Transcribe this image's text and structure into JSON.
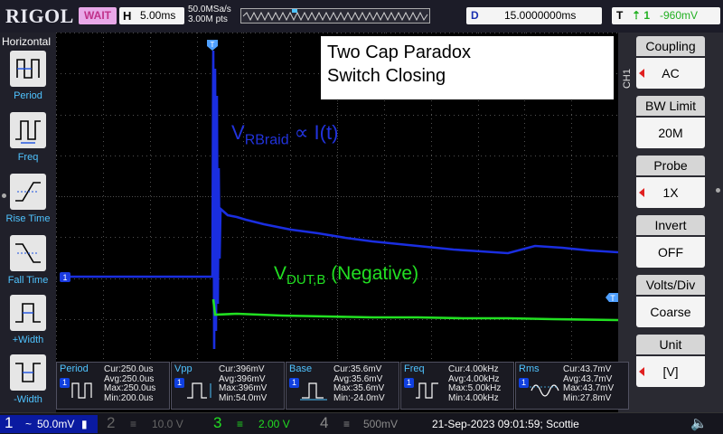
{
  "topbar": {
    "logo": "RIGOL",
    "run_status": "WAIT",
    "timebase_label": "H",
    "timebase_value": "5.00ms",
    "sample_rate": "50.0MSa/s",
    "memory_depth": "3.00M pts",
    "delay_label": "D",
    "delay_value": "15.0000000ms",
    "trigger_label": "T",
    "trigger_coupling": "⇡ 1",
    "trigger_level": "-960mV"
  },
  "left_panel": {
    "title": "Horizontal",
    "items": [
      {
        "label": "Period",
        "icon": "period-icon"
      },
      {
        "label": "Freq",
        "icon": "freq-icon"
      },
      {
        "label": "Rise Time",
        "icon": "rise-time-icon"
      },
      {
        "label": "Fall Time",
        "icon": "fall-time-icon"
      },
      {
        "label": "+Width",
        "icon": "positive-width-icon"
      },
      {
        "label": "-Width",
        "icon": "negative-width-icon"
      }
    ]
  },
  "annotation": {
    "line1": "Two Cap Paradox",
    "line2": "Switch Closing"
  },
  "trace_labels": {
    "blue_main": "V",
    "blue_sub": "RBraid",
    "blue_rest": " ∝ I(t)",
    "green_main": "V",
    "green_sub": "DUT,B",
    "green_rest": "  (Negative)"
  },
  "markers": {
    "ch1_marker": "1",
    "trigger_marker": "T"
  },
  "right_panel": {
    "channel_tag": "CH1",
    "menus": [
      {
        "title": "Coupling",
        "value": "AC",
        "has_arrow": true
      },
      {
        "title": "BW Limit",
        "value": "20M",
        "has_arrow": false
      },
      {
        "title": "Probe",
        "value": "1X",
        "has_arrow": true
      },
      {
        "title": "Invert",
        "value": "OFF",
        "has_arrow": false
      },
      {
        "title": "Volts/Div",
        "value": "Coarse",
        "has_arrow": false
      },
      {
        "title": "Unit",
        "value": "[V]",
        "has_arrow": true
      }
    ]
  },
  "measurements": [
    {
      "name": "Period",
      "channel": "1",
      "cur": "Cur:250.0us",
      "avg": "Avg:250.0us",
      "max": "Max:250.0us",
      "min": "Min:200.0us"
    },
    {
      "name": "Vpp",
      "channel": "1",
      "cur": "Cur:396mV",
      "avg": "Avg:396mV",
      "max": "Max:396mV",
      "min": "Min:54.0mV"
    },
    {
      "name": "Base",
      "channel": "1",
      "cur": "Cur:35.6mV",
      "avg": "Avg:35.6mV",
      "max": "Max:35.6mV",
      "min": "Min:-24.0mV"
    },
    {
      "name": "Freq",
      "channel": "1",
      "cur": "Cur:4.00kHz",
      "avg": "Avg:4.00kHz",
      "max": "Max:5.00kHz",
      "min": "Min:4.00kHz"
    },
    {
      "name": "Rms",
      "channel": "1",
      "cur": "Cur:43.7mV",
      "avg": "Avg:43.7mV",
      "max": "Max:43.7mV",
      "min": "Min:27.8mV"
    }
  ],
  "bottombar": {
    "channels": [
      {
        "num": "1",
        "coupling": "~",
        "scale": "50.0mV",
        "extra": "▮"
      },
      {
        "num": "2",
        "coupling": "≡",
        "scale": "10.0 V",
        "extra": ""
      },
      {
        "num": "3",
        "coupling": "≡",
        "scale": "2.00 V",
        "extra": ""
      },
      {
        "num": "4",
        "coupling": "≡",
        "scale": "500mV",
        "extra": ""
      }
    ],
    "datetime": "21-Sep-2023 09:01:59; Scottie",
    "speaker_icon": "🔈"
  },
  "colors": {
    "ch1": "#1a2ee0",
    "ch3": "#22e022",
    "grid": "#505050",
    "annotation_blue": "#2233dd"
  }
}
